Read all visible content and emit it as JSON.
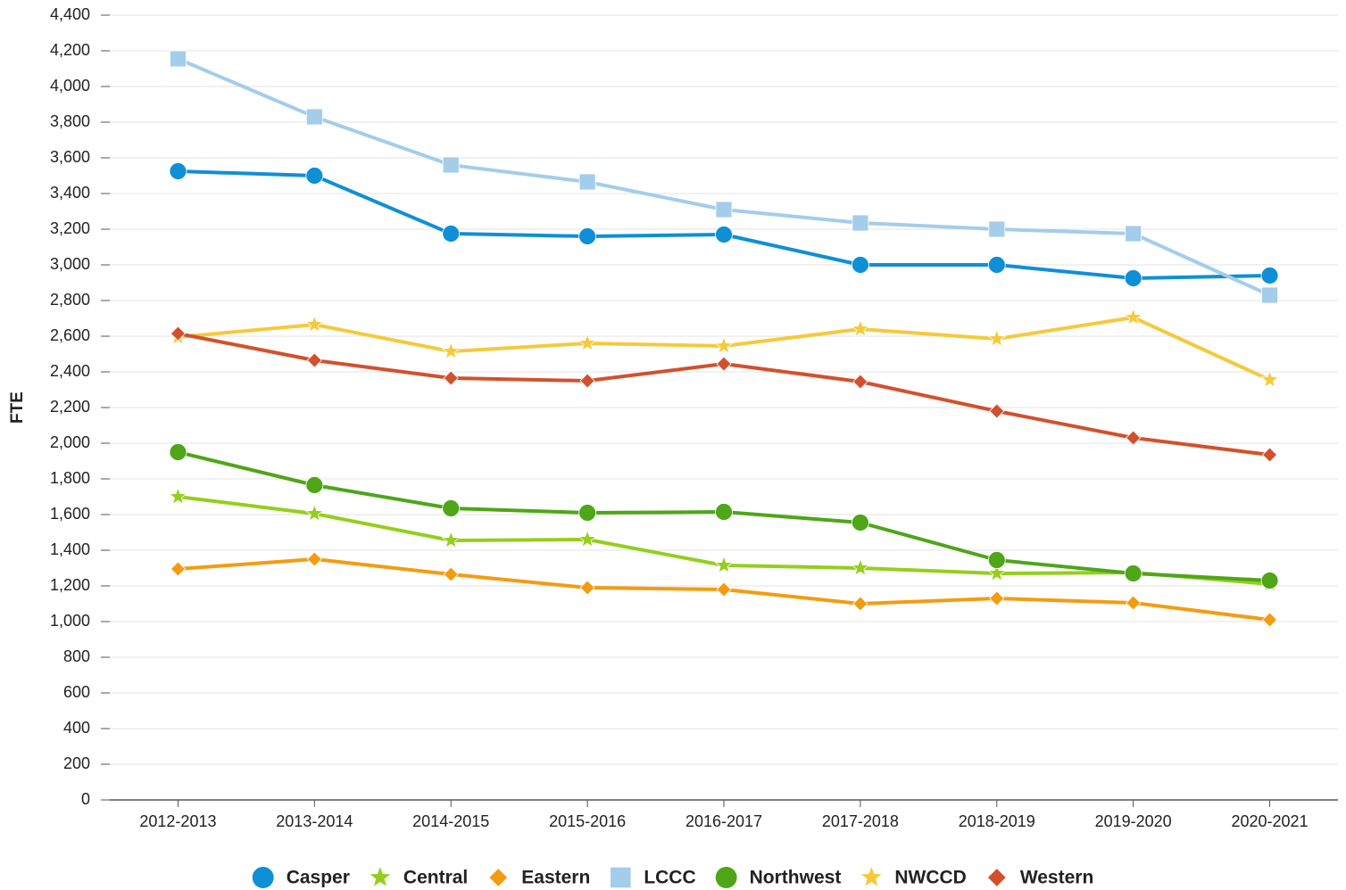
{
  "chart_data": {
    "type": "line",
    "y_label": "FTE",
    "categories": [
      "2012-2013",
      "2013-2014",
      "2014-2015",
      "2015-2016",
      "2016-2017",
      "2017-2018",
      "2018-2019",
      "2019-2020",
      "2020-2021"
    ],
    "ylim": [
      0,
      4400
    ],
    "yticks": [
      0,
      200,
      400,
      600,
      800,
      {
        "value": 1000,
        "label": "1,000"
      },
      {
        "value": 1200,
        "label": "1,200"
      },
      {
        "value": 1400,
        "label": "1,400"
      },
      {
        "value": 1600,
        "label": "1,600"
      },
      {
        "value": 1800,
        "label": "1,800"
      },
      {
        "value": 2000,
        "label": "2,000"
      },
      {
        "value": 2200,
        "label": "2,200"
      },
      {
        "value": 2400,
        "label": "2,400"
      },
      {
        "value": 2600,
        "label": "2,600"
      },
      {
        "value": 2800,
        "label": "2,800"
      },
      {
        "value": 3000,
        "label": "3,000"
      },
      {
        "value": 3200,
        "label": "3,200"
      },
      {
        "value": 3400,
        "label": "3,400"
      },
      {
        "value": 3600,
        "label": "3,600"
      },
      {
        "value": 3800,
        "label": "3,800"
      },
      {
        "value": 4000,
        "label": "4,000"
      },
      {
        "value": 4200,
        "label": "4,200"
      },
      {
        "value": 4400,
        "label": "4,400"
      }
    ],
    "grid": true,
    "legend": "bottom",
    "series": [
      {
        "name": "Casper",
        "color": "#0f8fd6",
        "marker": "circle",
        "values": [
          3525,
          3500,
          3175,
          3160,
          3170,
          3000,
          3000,
          2925,
          2940
        ]
      },
      {
        "name": "Central",
        "color": "#94cf1b",
        "marker": "star",
        "values": [
          1700,
          1605,
          1455,
          1460,
          1315,
          1300,
          1270,
          1275,
          1210
        ]
      },
      {
        "name": "Eastern",
        "color": "#f39c12",
        "marker": "diamond",
        "values": [
          1295,
          1350,
          1265,
          1190,
          1180,
          1100,
          1130,
          1105,
          1010
        ]
      },
      {
        "name": "LCCC",
        "color": "#a3cdea",
        "marker": "square",
        "values": [
          4155,
          3830,
          3560,
          3465,
          3310,
          3235,
          3200,
          3175,
          2830
        ]
      },
      {
        "name": "Northwest",
        "color": "#4ea618",
        "marker": "circle",
        "values": [
          1950,
          1765,
          1635,
          1610,
          1615,
          1555,
          1345,
          1270,
          1230
        ]
      },
      {
        "name": "NWCCD",
        "color": "#f4ca3c",
        "marker": "star",
        "values": [
          2595,
          2665,
          2515,
          2560,
          2545,
          2640,
          2585,
          2705,
          2355
        ]
      },
      {
        "name": "Western",
        "color": "#d2512c",
        "marker": "diamond",
        "values": [
          2615,
          2465,
          2365,
          2350,
          2445,
          2345,
          2180,
          2030,
          1935
        ]
      }
    ]
  }
}
